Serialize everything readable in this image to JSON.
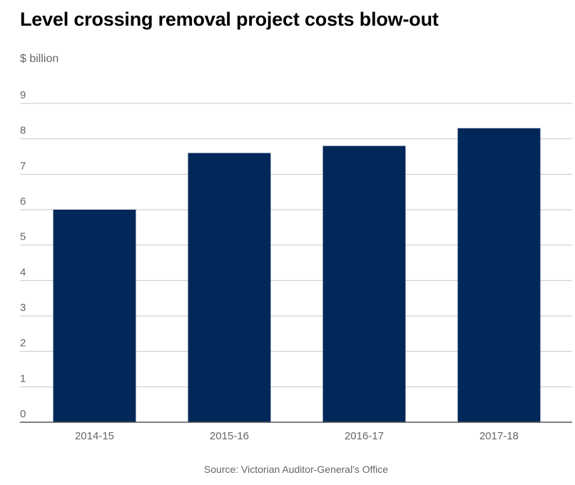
{
  "chart_data": {
    "type": "bar",
    "title": "Level crossing removal project costs blow-out",
    "ylabel": "$ billion",
    "xlabel": "",
    "categories": [
      "2014-15",
      "2015-16",
      "2016-17",
      "2017-18"
    ],
    "values": [
      6.0,
      7.6,
      7.8,
      8.3
    ],
    "ylim": [
      0,
      9
    ],
    "yticks": [
      0,
      1,
      2,
      3,
      4,
      5,
      6,
      7,
      8,
      9
    ],
    "grid": true,
    "legend": "none",
    "bar_color": "#02285a",
    "source": "Source: Victorian Auditor-General's Office"
  }
}
